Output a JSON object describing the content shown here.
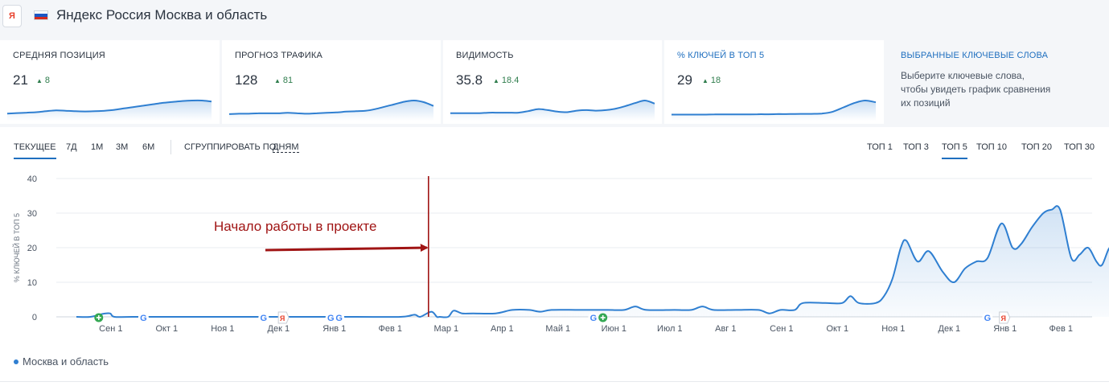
{
  "header": {
    "engine_icon": "yandex-logo",
    "engine_letter": "Я",
    "flag_colors": [
      "#ffffff",
      "#1c57c4",
      "#d52b1e"
    ],
    "title": "Яндекс Россия Москва и область"
  },
  "cards": [
    {
      "title": "СРЕДНЯЯ ПОЗИЦИЯ",
      "value": "21",
      "delta": "8",
      "spark": [
        1,
        1.1,
        1.2,
        1.3,
        1.5,
        1.7,
        1.6,
        1.5,
        1.45,
        1.5,
        1.6,
        1.8,
        2.1,
        2.4,
        2.7,
        3.0,
        3.3,
        3.5,
        3.7,
        3.8,
        3.8,
        3.6
      ]
    },
    {
      "title": "ПРОГНОЗ ТРАФИКА",
      "value": "128",
      "delta": "81",
      "spark": [
        1,
        1.1,
        1.1,
        1.2,
        1.2,
        1.2,
        1.3,
        1.2,
        1.1,
        1.2,
        1.3,
        1.4,
        1.6,
        1.7,
        1.8,
        2.2,
        2.8,
        3.4,
        4.0,
        4.3,
        3.9,
        3.0
      ]
    },
    {
      "title": "ВИДИМОСТЬ",
      "value": "35.8",
      "delta": "18.4",
      "spark": [
        1,
        1,
        1,
        1,
        1.1,
        1.1,
        1.1,
        1.1,
        1.4,
        1.8,
        1.6,
        1.3,
        1.2,
        1.5,
        1.6,
        1.5,
        1.6,
        1.9,
        2.4,
        3.0,
        3.5,
        2.9
      ]
    },
    {
      "title": "% КЛЮЧЕЙ В ТОП 5",
      "value": "29",
      "delta": "18",
      "spark": [
        1,
        1,
        1,
        1,
        1.05,
        1.05,
        1.05,
        1.05,
        1.1,
        1.1,
        1.15,
        1.15,
        1.2,
        1.2,
        1.3,
        1.8,
        3.0,
        4.2,
        4.9,
        4.4
      ]
    },
    {
      "title": "ВЫБРАННЫЕ КЛЮЧЕВЫЕ СЛОВА",
      "desc": "Выберите ключевые слова, чтобы увидеть график сравнения их позиций"
    }
  ],
  "toolbar": {
    "periods": [
      "ТЕКУЩЕЕ",
      "7Д",
      "1М",
      "3М",
      "6М"
    ],
    "active_period": "ТЕКУЩЕЕ",
    "group_label": "СГРУППИРОВАТЬ ПО:",
    "group_value": "ДНЯМ",
    "tops": [
      "ТОП 1",
      "ТОП 3",
      "ТОП 5",
      "ТОП 10",
      "ТОП 20",
      "ТОП 30"
    ],
    "active_top": "ТОП 5"
  },
  "colors": {
    "line": "#2f7fd1",
    "area": "#e7f0fb",
    "marker_line": "#a01414",
    "annotation": "#a01414",
    "google_green": "#34a853",
    "yandex_red": "#e8412c"
  },
  "chart_data": {
    "type": "area",
    "ylabel": "% КЛЮЧЕЙ В ТОП 5",
    "ylim": [
      0,
      40
    ],
    "yticks": [
      0,
      10,
      20,
      30,
      40
    ],
    "xlim": [
      0,
      18.4
    ],
    "x_ticks": [
      {
        "label": "Сен 1",
        "x": 0.4
      },
      {
        "label": "Окт 1",
        "x": 1.4
      },
      {
        "label": "Ноя 1",
        "x": 2.4
      },
      {
        "label": "Дек 1",
        "x": 3.4
      },
      {
        "label": "Янв 1",
        "x": 4.4
      },
      {
        "label": "Фев 1",
        "x": 5.4
      },
      {
        "label": "Мар 1",
        "x": 6.4
      },
      {
        "label": "Апр 1",
        "x": 7.4
      },
      {
        "label": "Май 1",
        "x": 8.4
      },
      {
        "label": "Июн 1",
        "x": 9.4
      },
      {
        "label": "Июл 1",
        "x": 10.4
      },
      {
        "label": "Авг 1",
        "x": 11.4
      },
      {
        "label": "Сен 1",
        "x": 12.4
      },
      {
        "label": "Окт 1",
        "x": 13.4
      },
      {
        "label": "Ноя 1",
        "x": 14.4
      },
      {
        "label": "Дек 1",
        "x": 15.4
      },
      {
        "label": "Янв 1",
        "x": 16.4
      },
      {
        "label": "Фев 1",
        "x": 17.4
      }
    ],
    "grid": true,
    "series": [
      {
        "name": "Москва и область",
        "points": [
          [
            0.0,
            0
          ],
          [
            0.25,
            0
          ],
          [
            0.45,
            0.8
          ],
          [
            0.6,
            1
          ],
          [
            0.68,
            0
          ],
          [
            1.0,
            0
          ],
          [
            2.0,
            0
          ],
          [
            3.0,
            0
          ],
          [
            4.0,
            0
          ],
          [
            5.0,
            0
          ],
          [
            5.8,
            0
          ],
          [
            6.05,
            0.6
          ],
          [
            6.15,
            0
          ],
          [
            6.35,
            1.5
          ],
          [
            6.45,
            0
          ],
          [
            6.5,
            0
          ],
          [
            6.65,
            0
          ],
          [
            6.75,
            1.8
          ],
          [
            6.9,
            1
          ],
          [
            7.1,
            1
          ],
          [
            7.5,
            1
          ],
          [
            7.8,
            2
          ],
          [
            8.1,
            2
          ],
          [
            8.3,
            1.5
          ],
          [
            8.5,
            2
          ],
          [
            9.0,
            2
          ],
          [
            9.5,
            2
          ],
          [
            9.8,
            2
          ],
          [
            10.0,
            3
          ],
          [
            10.2,
            2
          ],
          [
            10.7,
            2
          ],
          [
            11.0,
            2
          ],
          [
            11.2,
            3
          ],
          [
            11.4,
            2
          ],
          [
            11.8,
            2
          ],
          [
            12.2,
            2
          ],
          [
            12.4,
            1
          ],
          [
            12.6,
            2
          ],
          [
            12.85,
            2
          ],
          [
            13.0,
            4
          ],
          [
            13.4,
            4
          ],
          [
            13.7,
            4
          ],
          [
            13.85,
            6
          ],
          [
            14.0,
            4
          ],
          [
            14.3,
            4
          ],
          [
            14.45,
            6
          ],
          [
            14.6,
            11
          ],
          [
            14.75,
            20
          ],
          [
            14.85,
            22
          ],
          [
            15.05,
            16
          ],
          [
            15.25,
            19
          ],
          [
            15.5,
            13
          ],
          [
            15.7,
            10
          ],
          [
            15.9,
            14
          ],
          [
            16.1,
            16
          ],
          [
            16.3,
            17
          ],
          [
            16.55,
            27
          ],
          [
            16.75,
            20
          ],
          [
            16.9,
            21
          ],
          [
            17.1,
            26
          ],
          [
            17.3,
            30
          ],
          [
            17.45,
            31
          ],
          [
            17.6,
            31
          ],
          [
            17.8,
            17
          ],
          [
            17.95,
            18
          ],
          [
            18.1,
            20
          ],
          [
            18.25,
            16
          ],
          [
            18.35,
            15
          ],
          [
            18.5,
            20
          ],
          [
            18.55,
            11
          ],
          [
            18.65,
            14
          ],
          [
            18.8,
            29
          ]
        ]
      }
    ],
    "events": [
      {
        "x": 0.4,
        "type": "plus"
      },
      {
        "x": 1.2,
        "type": "google"
      },
      {
        "x": 3.35,
        "type": "google"
      },
      {
        "x": 3.7,
        "type": "yandex"
      },
      {
        "x": 4.55,
        "type": "google"
      },
      {
        "x": 4.7,
        "type": "google"
      },
      {
        "x": 9.25,
        "type": "google"
      },
      {
        "x": 9.42,
        "type": "plus"
      },
      {
        "x": 16.3,
        "type": "google"
      },
      {
        "x": 16.6,
        "type": "yandex"
      }
    ],
    "annotation": {
      "text": "Начало работы в проекте",
      "x": 6.4
    },
    "legend": "Москва и область"
  }
}
